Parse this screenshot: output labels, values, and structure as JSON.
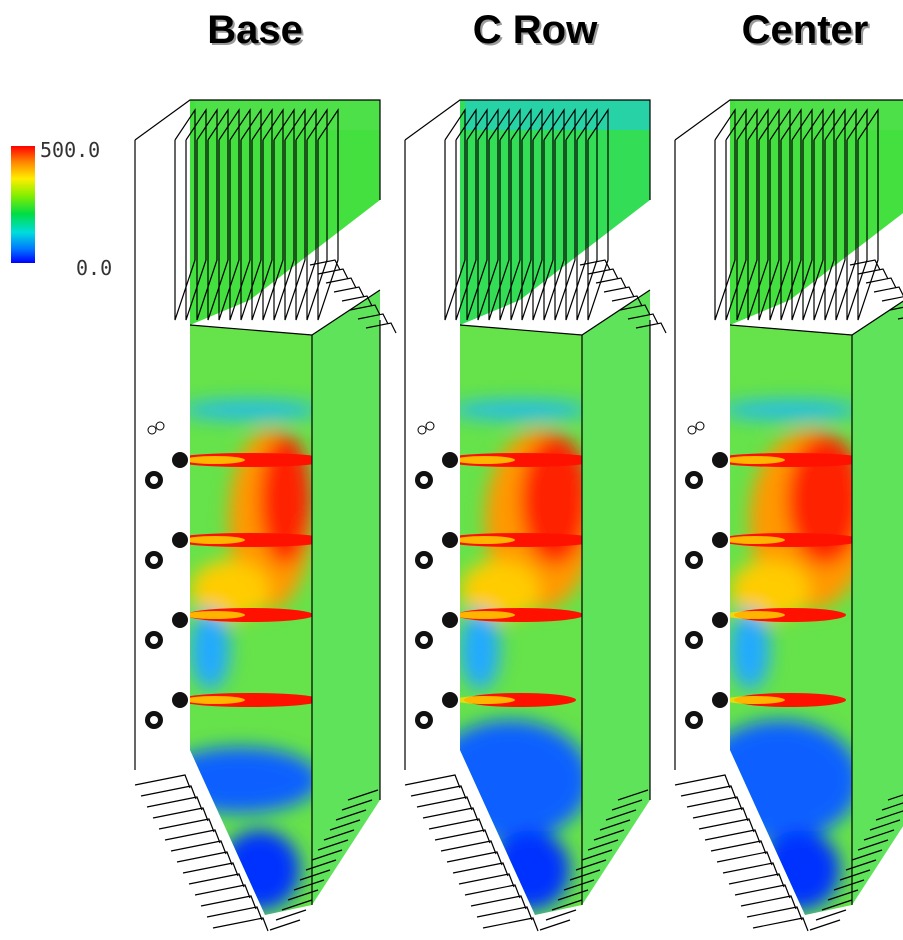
{
  "panels": [
    {
      "title": "Base"
    },
    {
      "title": "C Row"
    },
    {
      "title": "Center"
    }
  ],
  "colorbar": {
    "max_label": "500.0",
    "min_label": "0.0",
    "colors": [
      "#ff0000",
      "#ff8800",
      "#ffee00",
      "#88ee00",
      "#00dd44",
      "#00dddd",
      "#0077ff",
      "#0000ff"
    ]
  }
}
